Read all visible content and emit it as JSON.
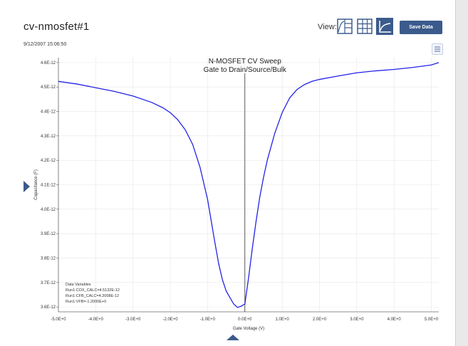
{
  "header": {
    "title": "cv-nmosfet#1",
    "timestamp": "9/12/2007 15:06:50",
    "view_label": "View:",
    "view_buttons": [
      {
        "name": "graph-table-icon",
        "active": false
      },
      {
        "name": "table-icon",
        "active": false
      },
      {
        "name": "graph-icon",
        "active": true
      }
    ],
    "save_label": "Save Data"
  },
  "colors": {
    "accent": "#3b5b8c",
    "series": "#2323e8",
    "active_view_bg": "#3b5b8c",
    "inactive_view_stroke": "#3b5b8c"
  },
  "chart_data": {
    "type": "line",
    "title_lines": [
      "N-MOSFET CV Sweep",
      "Gate to Drain/Source/Bulk"
    ],
    "xlabel": "Gate Voltage (V)",
    "ylabel": "Capacitance (F)",
    "xlim": [
      -5.0,
      5.2
    ],
    "ylim": [
      3.58e-12,
      4.62e-12
    ],
    "x_ticks": [
      -5,
      -4,
      -3,
      -2,
      -1,
      0,
      1,
      2,
      3,
      4,
      5
    ],
    "x_tick_labels": [
      "-5.0E+0",
      "-4.0E+0",
      "-3.0E+0",
      "-2.0E+0",
      "-1.0E+0",
      "0.0E+0",
      "1.0E+0",
      "2.0E+0",
      "3.0E+0",
      "4.0E+0",
      "5.0E+0"
    ],
    "y_ticks": [
      3.6e-12,
      3.7e-12,
      3.8e-12,
      3.9e-12,
      4e-12,
      4.1e-12,
      4.2e-12,
      4.3e-12,
      4.4e-12,
      4.5e-12,
      4.6e-12
    ],
    "y_tick_labels": [
      "3.6E-12",
      "3.7E-12",
      "3.8E-12",
      "3.9E-12",
      "4.0E-12",
      "4.1E-12",
      "4.2E-12",
      "4.3E-12",
      "4.4E-12",
      "4.5E-12",
      "4.6E-12"
    ],
    "grid": true,
    "vline_x": 0.0,
    "series": [
      {
        "x": [
          -5.0,
          -4.5,
          -4.0,
          -3.5,
          -3.0,
          -2.5,
          -2.2,
          -2.0,
          -1.8,
          -1.6,
          -1.4,
          -1.2,
          -1.0,
          -0.9,
          -0.8,
          -0.7,
          -0.6,
          -0.5,
          -0.4,
          -0.3,
          -0.2,
          -0.1,
          0.0,
          0.1,
          0.2,
          0.3,
          0.4,
          0.5,
          0.6,
          0.8,
          1.0,
          1.2,
          1.4,
          1.6,
          1.8,
          2.0,
          2.5,
          3.0,
          3.5,
          4.0,
          4.5,
          5.0,
          5.2
        ],
        "y": [
          4.523e-12,
          4.512e-12,
          4.497e-12,
          4.482e-12,
          4.463e-12,
          4.437e-12,
          4.415e-12,
          4.395e-12,
          4.366e-12,
          4.325e-12,
          4.265e-12,
          4.17e-12,
          4.04e-12,
          3.95e-12,
          3.86e-12,
          3.775e-12,
          3.71e-12,
          3.665e-12,
          3.638e-12,
          3.612e-12,
          3.598e-12,
          3.603e-12,
          3.612e-12,
          3.72e-12,
          3.84e-12,
          3.95e-12,
          4.05e-12,
          4.13e-12,
          4.2e-12,
          4.31e-12,
          4.395e-12,
          4.455e-12,
          4.49e-12,
          4.51e-12,
          4.523e-12,
          4.531e-12,
          4.545e-12,
          4.558e-12,
          4.566e-12,
          4.572e-12,
          4.58e-12,
          4.59e-12,
          4.6e-12
        ]
      }
    ],
    "legend_lines": [
      "Data Variables",
      "Run1:COX_CALC=4.5132E-12",
      "Run1:CFB_CALC=4.2008E-12",
      "Run1:VFB=-1.2000E+0"
    ]
  }
}
